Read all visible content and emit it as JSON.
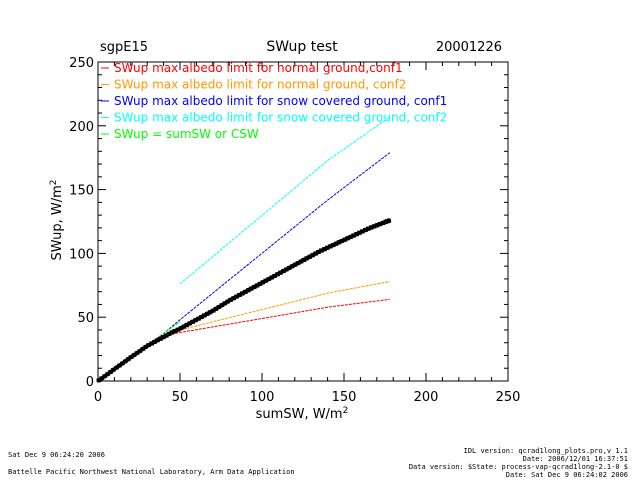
{
  "header": {
    "site": "sgpE15",
    "title": "SWup test",
    "date": "20001226"
  },
  "chart_data": {
    "type": "scatter",
    "title": "SWup test",
    "xlabel": "sumSW, W/m",
    "xlabel_sup": "2",
    "ylabel": "SWup, W/m",
    "ylabel_sup": "2",
    "xlim": [
      0,
      250
    ],
    "ylim": [
      0,
      250
    ],
    "xticks": [
      0,
      50,
      100,
      150,
      200,
      250
    ],
    "yticks": [
      0,
      50,
      100,
      150,
      200,
      250
    ],
    "grid": false,
    "legend_position": "top-left",
    "series": [
      {
        "name": "SWup max albedo limit for normal ground,conf1",
        "color": "#ff0000",
        "style": "line",
        "x": [
          0,
          10,
          20,
          30,
          38,
          50,
          80,
          110,
          140,
          178
        ],
        "y": [
          0,
          9.3,
          18.6,
          27.9,
          35.3,
          38,
          44.6,
          51.2,
          57.8,
          64
        ]
      },
      {
        "name": "SWup max albedo limit for normal ground, conf2",
        "color": "#ff9900",
        "style": "line",
        "x": [
          0,
          10,
          20,
          30,
          40,
          50,
          80,
          110,
          140,
          178
        ],
        "y": [
          0,
          9.3,
          18.6,
          27.9,
          36.3,
          40,
          49.6,
          59.2,
          68.8,
          78
        ]
      },
      {
        "name": "SWup max albedo limit for snow covered ground, conf1",
        "color": "#0000ff",
        "style": "line",
        "x": [
          0,
          10,
          20,
          30,
          40,
          50,
          80,
          110,
          140,
          178
        ],
        "y": [
          0,
          9.3,
          18.6,
          27.9,
          37.2,
          48,
          79.3,
          110.5,
          141.8,
          179
        ]
      },
      {
        "name": "SWup max albedo limit for snow covered ground, conf2",
        "color": "#00ffff",
        "style": "line",
        "x": [
          50,
          80,
          110,
          140,
          178
        ],
        "y": [
          76,
          108.3,
          140.5,
          172.8,
          207
        ]
      },
      {
        "name": "SWup = sumSW or CSW",
        "color": "#00ff00",
        "style": "line",
        "x": [
          0,
          10,
          20,
          30,
          40,
          50
        ],
        "y": [
          0,
          9.3,
          18.6,
          27.9,
          37.2,
          46.5
        ]
      },
      {
        "name": "",
        "color": "#000000",
        "style": "points",
        "x": [
          0,
          5,
          10,
          15,
          20,
          25,
          30,
          35,
          40,
          45,
          50,
          55,
          60,
          65,
          70,
          75,
          80,
          85,
          90,
          95,
          100,
          105,
          110,
          115,
          120,
          125,
          130,
          135,
          140,
          145,
          150,
          155,
          160,
          165,
          170,
          175,
          178
        ],
        "y": [
          0,
          4.6,
          9.3,
          13.9,
          18.6,
          23,
          27.5,
          31,
          34.5,
          38,
          41,
          44.5,
          48,
          51.5,
          55,
          59,
          63,
          66.5,
          70,
          73.5,
          77,
          80.5,
          84,
          87.5,
          91,
          94.5,
          98,
          101.5,
          104.5,
          107.5,
          110.5,
          113.5,
          116.5,
          119.5,
          122,
          124.5,
          126
        ]
      }
    ]
  },
  "footer": {
    "left_line1": "Sat Dec  9 06:24:20 2006",
    "left_line2": "Battelle Pacific Northwest National Laboratory, Arm Data Application",
    "right_line1": "IDL version: qcrad1long_plots.pro,v 1.1",
    "right_line2": "Date: 2006/12/01 16:37:51",
    "right_line3": "Data version: $State: process-vap-qcrad1long-2.1-0 $",
    "right_line4": "Date: Sat Dec  9 06:24:02 2006"
  }
}
